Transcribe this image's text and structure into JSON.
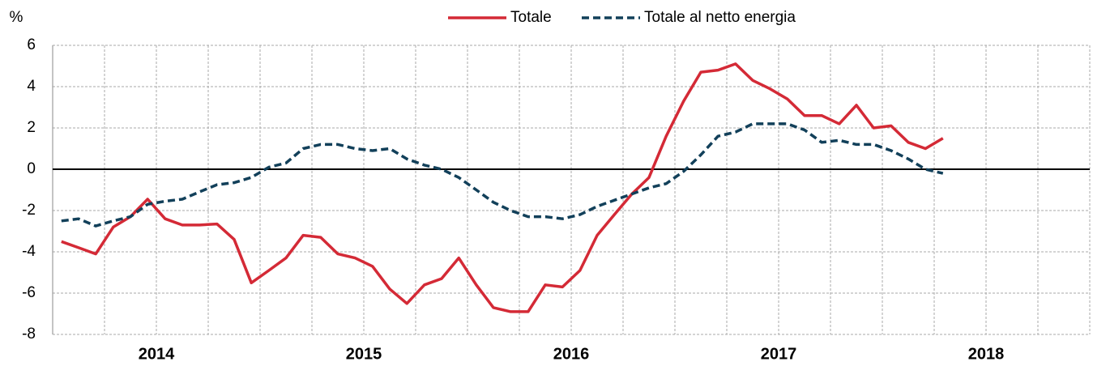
{
  "chart_data": {
    "type": "line",
    "y_label": "%",
    "x": [
      2014.042,
      2014.125,
      2014.208,
      2014.292,
      2014.375,
      2014.458,
      2014.542,
      2014.625,
      2014.708,
      2014.792,
      2014.875,
      2014.958,
      2015.042,
      2015.125,
      2015.208,
      2015.292,
      2015.375,
      2015.458,
      2015.542,
      2015.625,
      2015.708,
      2015.792,
      2015.875,
      2015.958,
      2016.042,
      2016.125,
      2016.208,
      2016.292,
      2016.375,
      2016.458,
      2016.542,
      2016.625,
      2016.708,
      2016.792,
      2016.875,
      2016.958,
      2017.042,
      2017.125,
      2017.208,
      2017.292,
      2017.375,
      2017.458,
      2017.542,
      2017.625,
      2017.708,
      2017.792,
      2017.875,
      2017.958,
      2018.042,
      2018.125,
      2018.208,
      2018.292
    ],
    "series": [
      {
        "name": "Totale",
        "color": "#d42a36",
        "dashed": false,
        "values": [
          -3.5,
          -3.8,
          -4.1,
          -2.8,
          -2.3,
          -1.45,
          -2.4,
          -2.7,
          -2.7,
          -2.65,
          -3.4,
          -5.5,
          -4.9,
          -4.3,
          -3.2,
          -3.3,
          -4.1,
          -4.3,
          -4.7,
          -5.8,
          -6.5,
          -5.6,
          -5.3,
          -4.3,
          -5.6,
          -6.7,
          -6.9,
          -6.9,
          -5.6,
          -5.7,
          -4.9,
          -3.2,
          -2.2,
          -1.2,
          -0.4,
          1.6,
          3.3,
          4.7,
          4.8,
          5.1,
          4.3,
          3.9,
          3.4,
          2.6,
          2.6,
          2.2,
          3.1,
          2.0,
          2.1,
          1.3,
          1.0,
          1.5
        ]
      },
      {
        "name": "Totale al netto energia",
        "color": "#12405a",
        "dashed": true,
        "values": [
          -2.5,
          -2.4,
          -2.75,
          -2.5,
          -2.3,
          -1.7,
          -1.55,
          -1.45,
          -1.1,
          -0.75,
          -0.65,
          -0.4,
          0.1,
          0.3,
          1.0,
          1.2,
          1.2,
          1.0,
          0.9,
          1.0,
          0.5,
          0.2,
          0.0,
          -0.4,
          -1.0,
          -1.6,
          -2.0,
          -2.3,
          -2.3,
          -2.4,
          -2.2,
          -1.8,
          -1.5,
          -1.2,
          -0.9,
          -0.7,
          -0.1,
          0.7,
          1.6,
          1.8,
          2.2,
          2.2,
          2.2,
          1.9,
          1.3,
          1.4,
          1.2,
          1.2,
          0.9,
          0.5,
          0.0,
          -0.2
        ]
      }
    ],
    "xlim": [
      2014,
      2019
    ],
    "xticks": [
      {
        "value": 2014.5,
        "label": "2014"
      },
      {
        "value": 2015.5,
        "label": "2015"
      },
      {
        "value": 2016.5,
        "label": "2016"
      },
      {
        "value": 2017.5,
        "label": "2017"
      },
      {
        "value": 2018.5,
        "label": "2018"
      }
    ],
    "xgrid": [
      2014,
      2014.25,
      2014.5,
      2014.75,
      2015,
      2015.25,
      2015.5,
      2015.75,
      2016,
      2016.25,
      2016.5,
      2016.75,
      2017,
      2017.25,
      2017.5,
      2017.75,
      2018,
      2018.25,
      2018.5,
      2018.75,
      2019
    ],
    "ylim": [
      -8,
      6
    ],
    "yticks": [
      -8,
      -6,
      -4,
      -2,
      0,
      2,
      4,
      6
    ],
    "grid": true,
    "legend": "top"
  }
}
